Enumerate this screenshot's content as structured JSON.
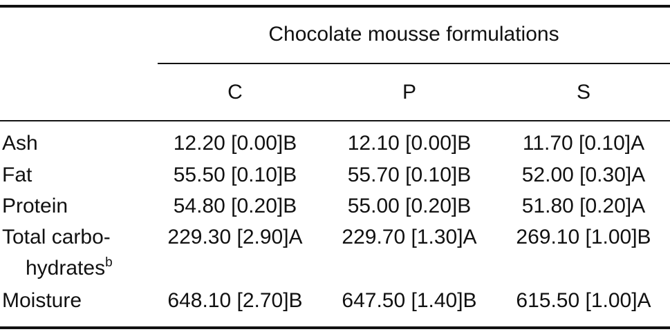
{
  "table": {
    "group_header": "Chocolate mousse formulations",
    "columns": [
      "C",
      "P",
      "S"
    ],
    "rows": [
      {
        "label": "Ash",
        "values": [
          "12.20 [0.00]B",
          "12.10 [0.00]B",
          "11.70 [0.10]A"
        ]
      },
      {
        "label": "Fat",
        "values": [
          "55.50 [0.10]B",
          "55.70 [0.10]B",
          "52.00 [0.30]A"
        ]
      },
      {
        "label": "Protein",
        "values": [
          "54.80 [0.20]B",
          "55.00 [0.20]B",
          "51.80 [0.20]A"
        ]
      },
      {
        "label": "Total carbo-",
        "label_cont": "hydrates",
        "label_sup": "b",
        "values": [
          "229.30 [2.90]A",
          "229.70 [1.30]A",
          "269.10 [1.00]B"
        ]
      },
      {
        "label": "Moisture",
        "values": [
          "648.10 [2.70]B",
          "647.50 [1.40]B",
          "615.50 [1.00]A"
        ]
      }
    ]
  }
}
